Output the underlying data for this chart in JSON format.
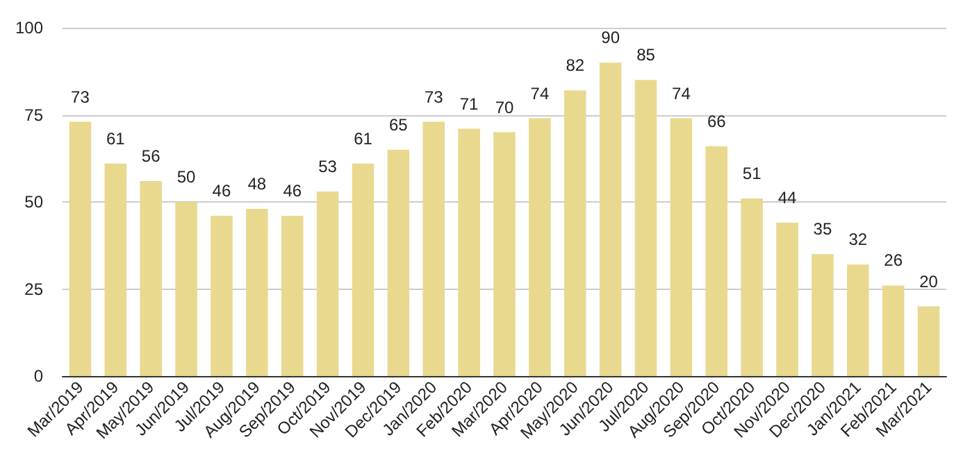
{
  "chart_data": {
    "type": "bar",
    "categories": [
      "Mar/2019",
      "Apr/2019",
      "May/2019",
      "Jun/2019",
      "Jul/2019",
      "Aug/2019",
      "Sep/2019",
      "Oct/2019",
      "Nov/2019",
      "Dec/2019",
      "Jan/2020",
      "Feb/2020",
      "Mar/2020",
      "Apr/2020",
      "May/2020",
      "Jun/2020",
      "Jul/2020",
      "Aug/2020",
      "Sep/2020",
      "Oct/2020",
      "Nov/2020",
      "Dec/2020",
      "Jan/2021",
      "Feb/2021",
      "Mar/2021"
    ],
    "values": [
      73,
      61,
      56,
      50,
      46,
      48,
      46,
      53,
      61,
      65,
      73,
      71,
      70,
      74,
      82,
      90,
      85,
      74,
      66,
      51,
      44,
      35,
      32,
      26,
      20
    ],
    "color": "#e8d98f",
    "ylim": [
      0,
      100
    ],
    "yticks": [
      0,
      25,
      50,
      75,
      100
    ],
    "grid": "y",
    "data_labels": true
  }
}
